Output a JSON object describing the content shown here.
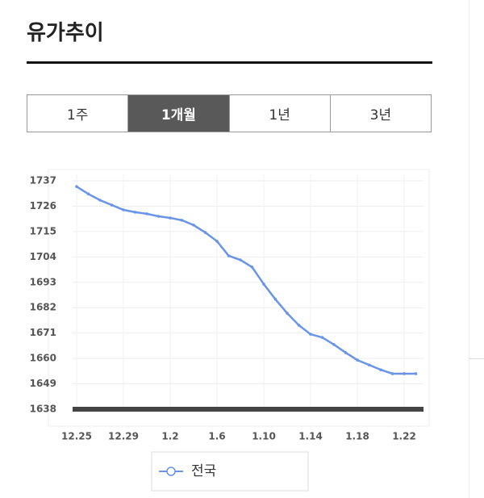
{
  "header": {
    "title": "유가추이"
  },
  "tabs": {
    "items": [
      "1주",
      "1개월",
      "1년",
      "3년"
    ],
    "active": 1
  },
  "chart_data": {
    "type": "line",
    "categories": [
      "12.25",
      null,
      null,
      null,
      "12.29",
      null,
      null,
      null,
      "1.2",
      null,
      null,
      null,
      "1.6",
      null,
      null,
      null,
      "1.10",
      null,
      null,
      null,
      "1.14",
      null,
      null,
      null,
      "1.18",
      null,
      null,
      null,
      "1.22",
      null
    ],
    "series": [
      {
        "name": "전국",
        "color": "#6a94e8",
        "values": [
          1734.5,
          1731.3,
          1728.6,
          1726.5,
          1724.4,
          1723.4,
          1722.7,
          1721.6,
          1720.9,
          1719.9,
          1717.8,
          1714.6,
          1710.8,
          1704.5,
          1702.7,
          1699.6,
          1692.2,
          1685.6,
          1679.6,
          1674.4,
          1670.5,
          1669.1,
          1666,
          1662.5,
          1659.3,
          1657.2,
          1655.1,
          1653.4,
          1653.4,
          1653.4
        ]
      }
    ],
    "ylim": [
      1638,
      1737
    ],
    "yticks": [
      1638,
      1649,
      1660,
      1671,
      1682,
      1693,
      1704,
      1715,
      1726,
      1737
    ],
    "grid": true
  }
}
